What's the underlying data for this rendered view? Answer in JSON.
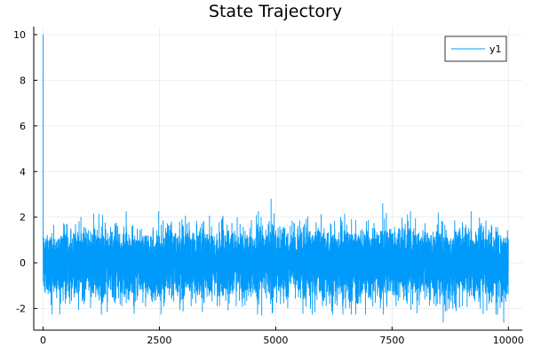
{
  "chart_data": {
    "type": "line",
    "title": "State Trajectory",
    "xlabel": "",
    "ylabel": "",
    "xlim": [
      -200,
      10300
    ],
    "ylim": [
      -2.95,
      10.35
    ],
    "x_ticks": [
      0,
      2500,
      5000,
      7500,
      10000
    ],
    "x_tick_labels": [
      "0",
      "2500",
      "5000",
      "7500",
      "10000"
    ],
    "y_ticks": [
      -2,
      0,
      2,
      4,
      6,
      8,
      10
    ],
    "y_tick_labels": [
      "-2",
      "0",
      "2",
      "4",
      "6",
      "8",
      "10"
    ],
    "grid": true,
    "legend_position": "top-right",
    "series": [
      {
        "name": "y1",
        "color": "#009AFA",
        "x_start": 0,
        "x_step": 1,
        "num_points": 10001,
        "description": "noise series around 0",
        "initial_values": [
          10.0,
          1.2,
          0.4
        ],
        "typical_range": [
          -1.5,
          1.5
        ],
        "extremes": [
          {
            "x": 4900,
            "y": 2.8
          },
          {
            "x": 7300,
            "y": 2.6
          },
          {
            "x": 4700,
            "y": -2.3
          },
          {
            "x": 8600,
            "y": -2.6
          },
          {
            "x": 9900,
            "y": -2.6
          }
        ]
      }
    ]
  }
}
